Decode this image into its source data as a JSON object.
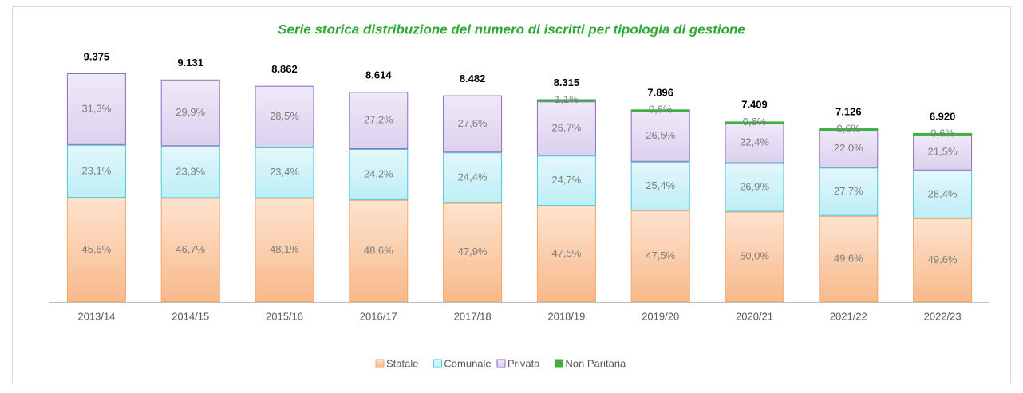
{
  "chart_data": {
    "type": "stacked_bar",
    "title": "Serie storica distribuzione del numero di iscritti per tipologia di gestione",
    "categories": [
      "2013/14",
      "2014/15",
      "2015/16",
      "2016/17",
      "2017/18",
      "2018/19",
      "2019/20",
      "2020/21",
      "2021/22",
      "2022/23"
    ],
    "totals": {
      "values": [
        9375,
        9131,
        8862,
        8614,
        8482,
        8315,
        7896,
        7409,
        7126,
        6920
      ],
      "value_labels": [
        "9.375",
        "9.131",
        "8.862",
        "8.614",
        "8.482",
        "8.315",
        "7.896",
        "7.409",
        "7.126",
        "6.920"
      ]
    },
    "series": [
      {
        "name": "Statale",
        "color": "#f5a66a",
        "values": [
          45.6,
          46.7,
          48.1,
          48.6,
          47.9,
          47.5,
          47.5,
          50.0,
          49.6,
          49.6
        ],
        "value_labels": [
          "45,6%",
          "46,7%",
          "48,1%",
          "48,6%",
          "47,9%",
          "47,5%",
          "47,5%",
          "50,0%",
          "49,6%",
          "49,6%"
        ]
      },
      {
        "name": "Comunale",
        "color": "#4fc6d8",
        "values": [
          23.1,
          23.3,
          23.4,
          24.2,
          24.4,
          24.7,
          25.4,
          26.9,
          27.7,
          28.4
        ],
        "value_labels": [
          "23,1%",
          "23,3%",
          "23,4%",
          "24,2%",
          "24,4%",
          "24,7%",
          "25,4%",
          "26,9%",
          "27,7%",
          "28,4%"
        ]
      },
      {
        "name": "Privata",
        "color": "#8c6cbc",
        "values": [
          31.3,
          29.9,
          28.5,
          27.2,
          27.6,
          26.7,
          26.5,
          22.4,
          22.0,
          21.5
        ],
        "value_labels": [
          "31,3%",
          "29,9%",
          "28,5%",
          "27,2%",
          "27,6%",
          "26,7%",
          "26,5%",
          "22,4%",
          "22,0%",
          "21,5%"
        ]
      },
      {
        "name": "Non Paritaria",
        "color": "#3cb043",
        "values": [
          null,
          null,
          null,
          null,
          null,
          1.1,
          0.6,
          0.6,
          0.6,
          0.6
        ],
        "value_labels": [
          null,
          null,
          null,
          null,
          null,
          "1,1%",
          "0,6%",
          "0,6%",
          "0,6%",
          "0,6%"
        ]
      }
    ]
  }
}
